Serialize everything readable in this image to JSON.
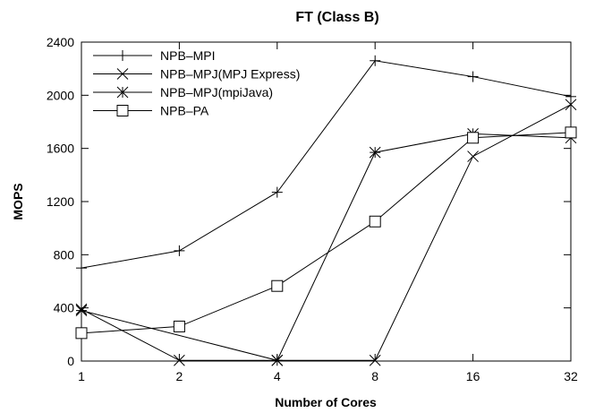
{
  "chart_data": {
    "type": "line",
    "title": "FT (Class B)",
    "xlabel": "Number of Cores",
    "ylabel": "MOPS",
    "categories": [
      "1",
      "2",
      "4",
      "8",
      "16",
      "32"
    ],
    "ylim": [
      0,
      2400
    ],
    "yticks": [
      "0",
      "400",
      "800",
      "1200",
      "1600",
      "2000",
      "2400"
    ],
    "grid": false,
    "legend_position": "top-left",
    "series": [
      {
        "name": "NPB–MPI",
        "marker": "plus",
        "values": [
          700,
          830,
          1270,
          2260,
          2140,
          1990
        ]
      },
      {
        "name": "NPB–MPJ(MPJ Express)",
        "marker": "cross",
        "values": [
          390,
          5,
          5,
          5,
          1540,
          1930
        ]
      },
      {
        "name": "NPB–MPJ(mpiJava)",
        "marker": "star",
        "values": [
          380,
          null,
          5,
          1570,
          1710,
          1680
        ]
      },
      {
        "name": "NPB–PA",
        "marker": "square",
        "values": [
          210,
          260,
          565,
          1050,
          1680,
          1720
        ]
      }
    ]
  }
}
